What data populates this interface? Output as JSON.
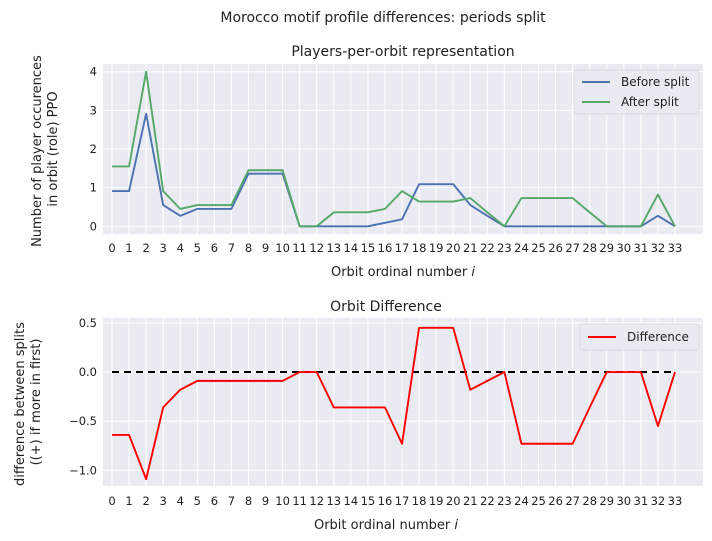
{
  "figure": {
    "suptitle": "Morocco motif profile differences: periods split"
  },
  "chart_data": [
    {
      "type": "line",
      "title": "Players-per-orbit representation",
      "xlabel": "Orbit ordinal number",
      "xlabel_italic": "i",
      "ylabel_line1": "Number of player occurences",
      "ylabel_line2": "in orbit (role) PPO",
      "x": [
        0,
        1,
        2,
        3,
        4,
        5,
        6,
        7,
        8,
        9,
        10,
        11,
        12,
        13,
        14,
        15,
        16,
        17,
        18,
        19,
        20,
        21,
        22,
        23,
        24,
        25,
        26,
        27,
        28,
        29,
        30,
        31,
        32,
        33
      ],
      "xtick_labels": [
        "0",
        "1",
        "2",
        "3",
        "4",
        "5",
        "6",
        "7",
        "8",
        "9",
        "10",
        "11",
        "12",
        "13",
        "14",
        "15",
        "16",
        "17",
        "18",
        "19",
        "20",
        "21",
        "22",
        "23",
        "24",
        "25",
        "26",
        "27",
        "28",
        "29",
        "30",
        "31",
        "32",
        "33"
      ],
      "yticks": [
        0,
        1,
        2,
        3,
        4
      ],
      "ytick_labels": [
        "0",
        "1",
        "2",
        "3",
        "4"
      ],
      "ylim": [
        -0.2,
        4.2
      ],
      "grid": true,
      "legend_position": "top-right",
      "series": [
        {
          "name": "Before split",
          "color": "#4c72b0",
          "values": [
            0.91,
            0.91,
            2.91,
            0.55,
            0.27,
            0.45,
            0.45,
            0.45,
            1.36,
            1.36,
            1.36,
            0.0,
            0.0,
            0.0,
            0.0,
            0.0,
            0.09,
            0.18,
            1.09,
            1.09,
            1.09,
            0.55,
            0.27,
            0.0,
            0.0,
            0.0,
            0.0,
            0.0,
            0.0,
            0.0,
            0.0,
            0.0,
            0.27,
            0.0
          ]
        },
        {
          "name": "After split",
          "color": "#55a868",
          "values": [
            1.55,
            1.55,
            4.0,
            0.91,
            0.45,
            0.55,
            0.55,
            0.55,
            1.45,
            1.45,
            1.45,
            0.0,
            0.0,
            0.36,
            0.36,
            0.36,
            0.45,
            0.91,
            0.64,
            0.64,
            0.64,
            0.73,
            0.36,
            0.0,
            0.73,
            0.73,
            0.73,
            0.73,
            0.36,
            0.0,
            0.0,
            0.0,
            0.82,
            0.0
          ]
        }
      ]
    },
    {
      "type": "line",
      "title": "Orbit Difference",
      "xlabel": "Orbit ordinal number",
      "xlabel_italic": "i",
      "ylabel_line1": "difference between splits",
      "ylabel_line2": "((+) if more in first)",
      "x": [
        0,
        1,
        2,
        3,
        4,
        5,
        6,
        7,
        8,
        9,
        10,
        11,
        12,
        13,
        14,
        15,
        16,
        17,
        18,
        19,
        20,
        21,
        22,
        23,
        24,
        25,
        26,
        27,
        28,
        29,
        30,
        31,
        32,
        33
      ],
      "xtick_labels": [
        "0",
        "1",
        "2",
        "3",
        "4",
        "5",
        "6",
        "7",
        "8",
        "9",
        "10",
        "11",
        "12",
        "13",
        "14",
        "15",
        "16",
        "17",
        "18",
        "19",
        "20",
        "21",
        "22",
        "23",
        "24",
        "25",
        "26",
        "27",
        "28",
        "29",
        "30",
        "31",
        "32",
        "33"
      ],
      "yticks": [
        -1.0,
        -0.5,
        0.0,
        0.5
      ],
      "ytick_labels": [
        "−1.0",
        "−0.5",
        "0.0",
        "0.5"
      ],
      "ylim": [
        -1.16,
        0.55
      ],
      "grid": true,
      "legend_position": "top-right",
      "reference_line": {
        "y": 0,
        "style": "dashed",
        "color": "#000000"
      },
      "series": [
        {
          "name": "Difference",
          "color": "#ff0000",
          "values": [
            -0.64,
            -0.64,
            -1.09,
            -0.36,
            -0.18,
            -0.09,
            -0.09,
            -0.09,
            -0.09,
            -0.09,
            -0.09,
            0.0,
            0.0,
            -0.36,
            -0.36,
            -0.36,
            -0.36,
            -0.73,
            0.45,
            0.45,
            0.45,
            -0.18,
            -0.09,
            0.0,
            -0.73,
            -0.73,
            -0.73,
            -0.73,
            -0.36,
            0.0,
            0.0,
            0.0,
            -0.55,
            0.0
          ]
        }
      ]
    }
  ]
}
